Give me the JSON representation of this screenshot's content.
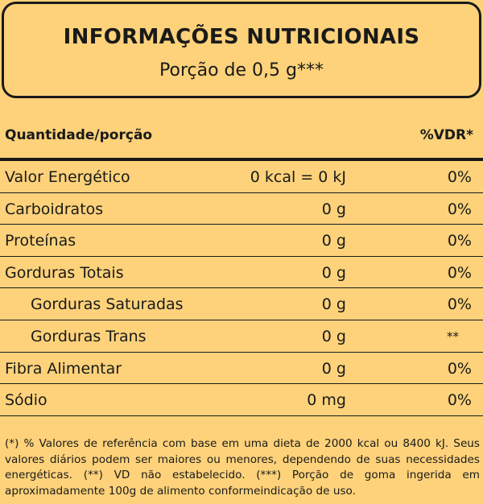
{
  "header": {
    "title": "INFORMAÇÕES NUTRICIONAIS",
    "subtitle": "Porção de 0,5 g***"
  },
  "columns": {
    "left": "Quantidade/porção",
    "right": "%VDR*"
  },
  "rows": [
    {
      "name": "Valor Energético",
      "qty": "0 kcal = 0 kJ",
      "vdr": "0%"
    },
    {
      "name": "Carboidratos",
      "qty": "0 g",
      "vdr": "0%"
    },
    {
      "name": "Proteínas",
      "qty": "0 g",
      "vdr": "0%"
    },
    {
      "name": "Gorduras Totais",
      "qty": "0 g",
      "vdr": "0%"
    },
    {
      "name": "Gorduras Saturadas",
      "qty": "0 g",
      "vdr": "0%"
    },
    {
      "name": "Gorduras Trans",
      "qty": "0 g",
      "vdr": "**"
    },
    {
      "name": "Fibra Alimentar",
      "qty": "0 g",
      "vdr": "0%"
    },
    {
      "name": "Sódio",
      "qty": "0 mg",
      "vdr": "0%"
    }
  ],
  "footnote": "(*) % Valores de referência com base em uma dieta de 2000 kcal ou 8400 kJ. Seus valores diários podem ser maiores ou menores, dependendo de suas necessidades energéticas. (**) VD não estabelecido. (***) Porção de goma ingerida em aproximadamente 100g de alimento conformeindicação de uso.",
  "colors": {
    "background": "#fdd27a",
    "text": "#1a1a1a"
  }
}
